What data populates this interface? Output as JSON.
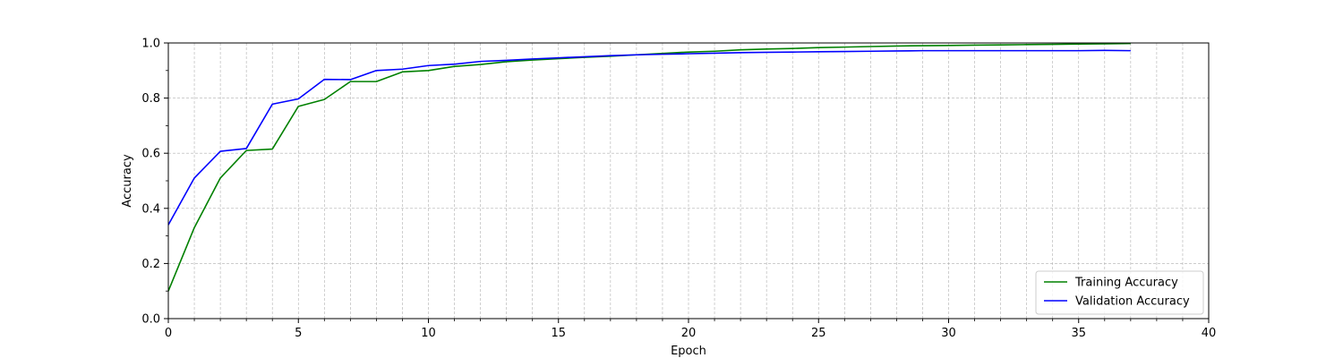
{
  "chart_data": {
    "type": "line",
    "xlabel": "Epoch",
    "ylabel": "Accuracy",
    "xlim": [
      0,
      40
    ],
    "ylim": [
      0.0,
      1.0
    ],
    "x_ticks": [
      0,
      5,
      10,
      15,
      20,
      25,
      30,
      35,
      40
    ],
    "x_tick_labels": [
      "0",
      "5",
      "10",
      "15",
      "20",
      "25",
      "30",
      "35",
      "40"
    ],
    "y_ticks": [
      0.0,
      0.2,
      0.4,
      0.6,
      0.8,
      1.0
    ],
    "y_tick_labels": [
      "0.0",
      "0.2",
      "0.4",
      "0.6",
      "0.8",
      "1.0"
    ],
    "x_minor_step": 1,
    "y_minor_step": 0.1,
    "grid": true,
    "legend_position": "bottom-right",
    "x": [
      0,
      1,
      2,
      3,
      4,
      5,
      6,
      7,
      8,
      9,
      10,
      11,
      12,
      13,
      14,
      15,
      16,
      17,
      18,
      19,
      20,
      21,
      22,
      23,
      24,
      25,
      26,
      27,
      28,
      29,
      30,
      31,
      32,
      33,
      34,
      35,
      36,
      37
    ],
    "series": [
      {
        "name": "Training Accuracy",
        "color": "#008000",
        "values": [
          0.1,
          0.33,
          0.51,
          0.61,
          0.615,
          0.77,
          0.795,
          0.86,
          0.86,
          0.895,
          0.9,
          0.915,
          0.922,
          0.932,
          0.938,
          0.943,
          0.948,
          0.952,
          0.957,
          0.962,
          0.967,
          0.97,
          0.975,
          0.978,
          0.98,
          0.983,
          0.985,
          0.987,
          0.989,
          0.99,
          0.991,
          0.992,
          0.993,
          0.994,
          0.995,
          0.996,
          0.997,
          0.998
        ]
      },
      {
        "name": "Validation Accuracy",
        "color": "#0000ff",
        "values": [
          0.34,
          0.51,
          0.607,
          0.617,
          0.778,
          0.797,
          0.868,
          0.867,
          0.9,
          0.905,
          0.918,
          0.923,
          0.933,
          0.937,
          0.942,
          0.946,
          0.95,
          0.954,
          0.957,
          0.959,
          0.961,
          0.963,
          0.965,
          0.966,
          0.967,
          0.968,
          0.969,
          0.97,
          0.971,
          0.972,
          0.972,
          0.972,
          0.972,
          0.972,
          0.972,
          0.972,
          0.973,
          0.972
        ]
      }
    ]
  }
}
